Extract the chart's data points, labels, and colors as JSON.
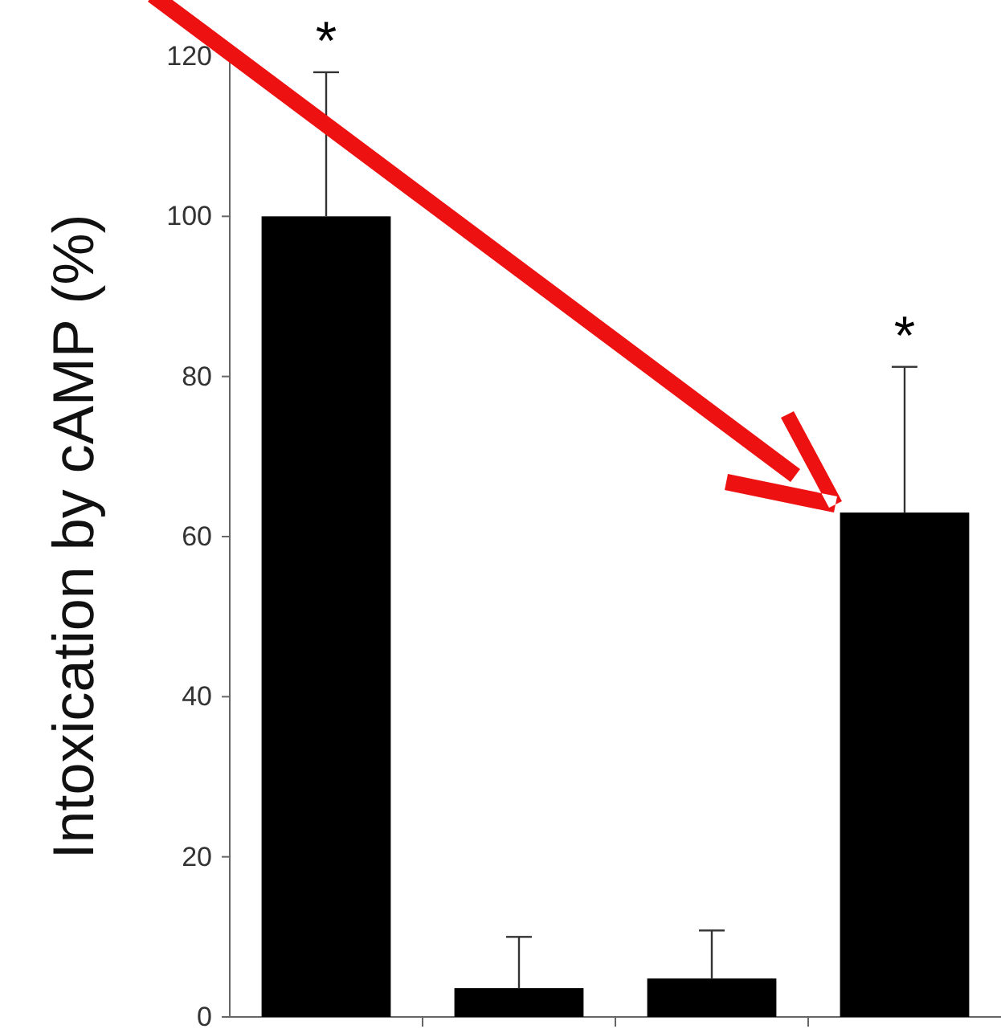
{
  "chart_data": {
    "type": "bar",
    "ylabel": "Intoxication by cAMP (%)",
    "categories": [
      null,
      null,
      null,
      null
    ],
    "values": [
      100,
      3.6,
      4.8,
      63
    ],
    "errors": [
      [
        100,
        118
      ],
      [
        3.6,
        10
      ],
      [
        4.8,
        10.8
      ],
      [
        63,
        81.2
      ]
    ],
    "value_labels": [
      "*",
      null,
      null,
      "*"
    ],
    "color": "#000000",
    "ylim": [
      0,
      120
    ],
    "yticks": [
      0,
      20,
      40,
      60,
      80,
      100,
      120
    ],
    "grid": false
  }
}
